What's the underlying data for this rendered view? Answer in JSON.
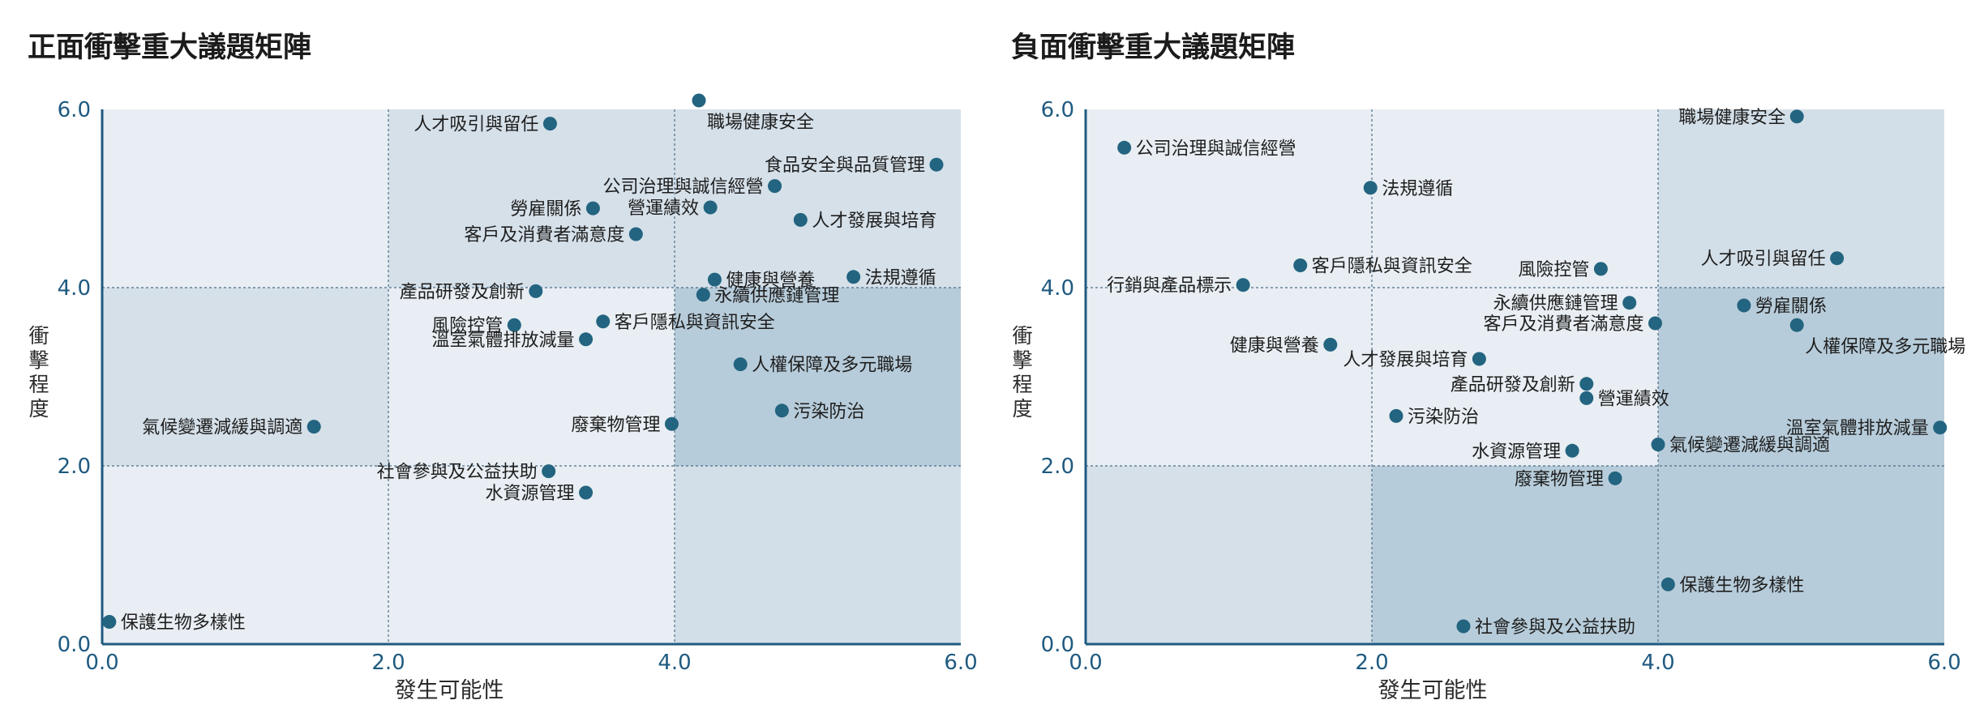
{
  "chart_data": [
    {
      "type": "scatter",
      "title": "正面衝擊重大議題矩陣",
      "xlabel": "發生可能性",
      "ylabel": "衝擊程度",
      "xlim": [
        0,
        6
      ],
      "ylim": [
        0,
        6
      ],
      "xticks": [
        "0.0",
        "2.0",
        "4.0",
        "6.0"
      ],
      "yticks": [
        "0.0",
        "2.0",
        "4.0",
        "6.0"
      ],
      "grid": true,
      "point_color": "#236480",
      "points": [
        {
          "label": "職場健康安全",
          "x": 4.17,
          "y": 6.1,
          "side": "below"
        },
        {
          "label": "人才吸引與留任",
          "x": 3.13,
          "y": 5.84,
          "side": "left"
        },
        {
          "label": "食品安全與品質管理",
          "x": 5.83,
          "y": 5.38,
          "side": "left"
        },
        {
          "label": "公司治理與誠信經營",
          "x": 4.7,
          "y": 5.14,
          "side": "left"
        },
        {
          "label": "勞雇關係",
          "x": 3.43,
          "y": 4.89,
          "side": "left"
        },
        {
          "label": "營運績效",
          "x": 4.25,
          "y": 4.9,
          "side": "left"
        },
        {
          "label": "人才發展與培育",
          "x": 4.88,
          "y": 4.76,
          "side": "right"
        },
        {
          "label": "客戶及消費者滿意度",
          "x": 3.73,
          "y": 4.6,
          "side": "left"
        },
        {
          "label": "健康與營養",
          "x": 4.28,
          "y": 4.09,
          "side": "right"
        },
        {
          "label": "法規遵循",
          "x": 5.25,
          "y": 4.12,
          "side": "right"
        },
        {
          "label": "產品研發及創新",
          "x": 3.03,
          "y": 3.96,
          "side": "left"
        },
        {
          "label": "永續供應鏈管理",
          "x": 4.2,
          "y": 3.92,
          "side": "right"
        },
        {
          "label": "風險控管",
          "x": 2.88,
          "y": 3.58,
          "side": "left"
        },
        {
          "label": "客戶隱私與資訊安全",
          "x": 3.5,
          "y": 3.62,
          "side": "right"
        },
        {
          "label": "溫室氣體排放減量",
          "x": 3.38,
          "y": 3.42,
          "side": "left"
        },
        {
          "label": "人權保障及多元職場",
          "x": 4.46,
          "y": 3.14,
          "side": "right"
        },
        {
          "label": "污染防治",
          "x": 4.75,
          "y": 2.62,
          "side": "right"
        },
        {
          "label": "氣候變遷減緩與調適",
          "x": 1.48,
          "y": 2.44,
          "side": "left"
        },
        {
          "label": "廢棄物管理",
          "x": 3.98,
          "y": 2.47,
          "side": "left"
        },
        {
          "label": "社會參與及公益扶助",
          "x": 3.12,
          "y": 1.94,
          "side": "left"
        },
        {
          "label": "水資源管理",
          "x": 3.38,
          "y": 1.7,
          "side": "left"
        },
        {
          "label": "保護生物多樣性",
          "x": 0.05,
          "y": 0.25,
          "side": "right"
        }
      ]
    },
    {
      "type": "scatter",
      "title": "負面衝擊重大議題矩陣",
      "xlabel": "發生可能性",
      "ylabel": "衝擊程度",
      "xlim": [
        0,
        6
      ],
      "ylim": [
        0,
        6
      ],
      "xticks": [
        "0.0",
        "2.0",
        "4.0",
        "6.0"
      ],
      "yticks": [
        "0.0",
        "2.0",
        "4.0",
        "6.0"
      ],
      "grid": true,
      "point_color": "#236480",
      "points": [
        {
          "label": "職場健康安全",
          "x": 4.97,
          "y": 5.92,
          "side": "left"
        },
        {
          "label": "公司治理與誠信經營",
          "x": 0.27,
          "y": 5.57,
          "side": "right"
        },
        {
          "label": "法規遵循",
          "x": 1.99,
          "y": 5.12,
          "side": "right"
        },
        {
          "label": "人才吸引與留任",
          "x": 5.25,
          "y": 4.33,
          "side": "left"
        },
        {
          "label": "客戶隱私與資訊安全",
          "x": 1.5,
          "y": 4.25,
          "side": "right"
        },
        {
          "label": "風險控管",
          "x": 3.6,
          "y": 4.21,
          "side": "left"
        },
        {
          "label": "行銷與產品標示",
          "x": 1.1,
          "y": 4.03,
          "side": "left"
        },
        {
          "label": "永續供應鏈管理",
          "x": 3.8,
          "y": 3.83,
          "side": "left"
        },
        {
          "label": "勞雇關係",
          "x": 4.6,
          "y": 3.8,
          "side": "right"
        },
        {
          "label": "客戶及消費者滿意度",
          "x": 3.98,
          "y": 3.6,
          "side": "left"
        },
        {
          "label": "人權保障及多元職場",
          "x": 4.97,
          "y": 3.58,
          "side": "below"
        },
        {
          "label": "健康與營養",
          "x": 1.71,
          "y": 3.36,
          "side": "left"
        },
        {
          "label": "人才發展與培育",
          "x": 2.75,
          "y": 3.2,
          "side": "left"
        },
        {
          "label": "產品研發及創新",
          "x": 3.5,
          "y": 2.92,
          "side": "left"
        },
        {
          "label": "營運績效",
          "x": 3.5,
          "y": 2.76,
          "side": "right"
        },
        {
          "label": "污染防治",
          "x": 2.17,
          "y": 2.56,
          "side": "right"
        },
        {
          "label": "溫室氣體排放減量",
          "x": 5.97,
          "y": 2.43,
          "side": "left"
        },
        {
          "label": "水資源管理",
          "x": 3.4,
          "y": 2.17,
          "side": "left"
        },
        {
          "label": "氣候變遷減緩與調適",
          "x": 4.0,
          "y": 2.24,
          "side": "right"
        },
        {
          "label": "廢棄物管理",
          "x": 3.7,
          "y": 1.86,
          "side": "left"
        },
        {
          "label": "保護生物多樣性",
          "x": 4.07,
          "y": 0.67,
          "side": "right"
        },
        {
          "label": "社會參與及公益扶助",
          "x": 2.64,
          "y": 0.2,
          "side": "right"
        }
      ]
    }
  ]
}
